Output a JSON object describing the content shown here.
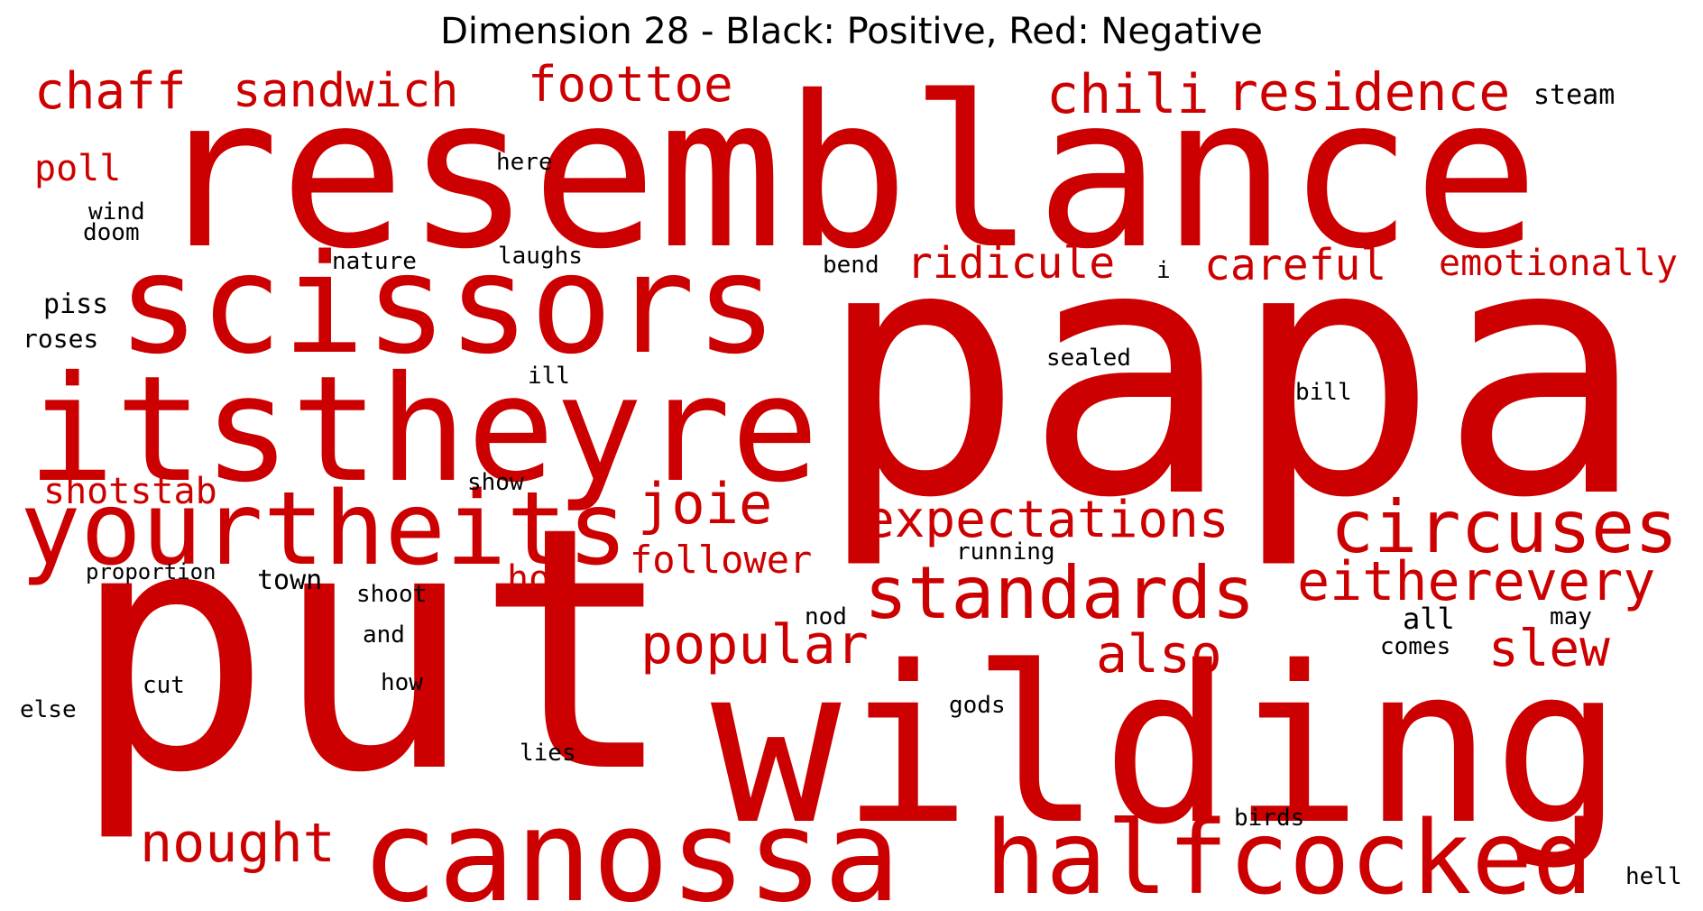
{
  "chart_data": {
    "type": "wordcloud",
    "title": "Dimension 28 - Black: Positive, Red: Negative",
    "colors": {
      "positive": "#000000",
      "negative": "#cc0000"
    },
    "words": [
      {
        "text": "papa",
        "weight": 1.0,
        "sign": "negative"
      },
      {
        "text": "put",
        "weight": 0.98,
        "sign": "negative"
      },
      {
        "text": "resemblance",
        "weight": 0.7,
        "sign": "negative"
      },
      {
        "text": "wilding",
        "weight": 0.68,
        "sign": "negative"
      },
      {
        "text": "itstheyre",
        "weight": 0.46,
        "sign": "negative"
      },
      {
        "text": "scissors",
        "weight": 0.44,
        "sign": "negative"
      },
      {
        "text": "canossa",
        "weight": 0.44,
        "sign": "negative"
      },
      {
        "text": "yourtheits",
        "weight": 0.33,
        "sign": "negative"
      },
      {
        "text": "halfcocked",
        "weight": 0.33,
        "sign": "negative"
      },
      {
        "text": "circuses",
        "weight": 0.24,
        "sign": "negative"
      },
      {
        "text": "standards",
        "weight": 0.24,
        "sign": "negative"
      },
      {
        "text": "eitherevery",
        "weight": 0.18,
        "sign": "negative"
      },
      {
        "text": "joie",
        "weight": 0.18,
        "sign": "negative"
      },
      {
        "text": "popular",
        "weight": 0.18,
        "sign": "negative"
      },
      {
        "text": "expectations",
        "weight": 0.17,
        "sign": "negative"
      },
      {
        "text": "also",
        "weight": 0.19,
        "sign": "negative"
      },
      {
        "text": "nought",
        "weight": 0.19,
        "sign": "negative"
      },
      {
        "text": "chili",
        "weight": 0.18,
        "sign": "negative"
      },
      {
        "text": "residence",
        "weight": 0.17,
        "sign": "negative"
      },
      {
        "text": "foottoe",
        "weight": 0.16,
        "sign": "negative"
      },
      {
        "text": "chaff",
        "weight": 0.16,
        "sign": "negative"
      },
      {
        "text": "sandwich",
        "weight": 0.15,
        "sign": "negative"
      },
      {
        "text": "slew",
        "weight": 0.17,
        "sign": "negative"
      },
      {
        "text": "ridicule",
        "weight": 0.14,
        "sign": "negative"
      },
      {
        "text": "careful",
        "weight": 0.14,
        "sign": "negative"
      },
      {
        "text": "follower",
        "weight": 0.12,
        "sign": "negative"
      },
      {
        "text": "emotionally",
        "weight": 0.11,
        "sign": "negative"
      },
      {
        "text": "shotstab",
        "weight": 0.11,
        "sign": "negative"
      },
      {
        "text": "poll",
        "weight": 0.11,
        "sign": "negative"
      },
      {
        "text": "hol",
        "weight": 0.11,
        "sign": "negative"
      },
      {
        "text": "steam",
        "weight": 0.07,
        "sign": "positive"
      },
      {
        "text": "here",
        "weight": 0.06,
        "sign": "positive"
      },
      {
        "text": "wind",
        "weight": 0.06,
        "sign": "positive"
      },
      {
        "text": "doom",
        "weight": 0.06,
        "sign": "positive"
      },
      {
        "text": "nature",
        "weight": 0.06,
        "sign": "positive"
      },
      {
        "text": "laughs",
        "weight": 0.06,
        "sign": "positive"
      },
      {
        "text": "bend",
        "weight": 0.06,
        "sign": "positive"
      },
      {
        "text": "i",
        "weight": 0.06,
        "sign": "positive"
      },
      {
        "text": "piss",
        "weight": 0.07,
        "sign": "positive"
      },
      {
        "text": "roses",
        "weight": 0.07,
        "sign": "positive"
      },
      {
        "text": "ill",
        "weight": 0.06,
        "sign": "positive"
      },
      {
        "text": "sealed",
        "weight": 0.06,
        "sign": "positive"
      },
      {
        "text": "bill",
        "weight": 0.06,
        "sign": "positive"
      },
      {
        "text": "show",
        "weight": 0.06,
        "sign": "positive"
      },
      {
        "text": "running",
        "weight": 0.06,
        "sign": "positive"
      },
      {
        "text": "proportion",
        "weight": 0.06,
        "sign": "positive"
      },
      {
        "text": "town",
        "weight": 0.07,
        "sign": "positive"
      },
      {
        "text": "shoot",
        "weight": 0.06,
        "sign": "positive"
      },
      {
        "text": "nod",
        "weight": 0.06,
        "sign": "positive"
      },
      {
        "text": "all",
        "weight": 0.08,
        "sign": "positive"
      },
      {
        "text": "may",
        "weight": 0.06,
        "sign": "positive"
      },
      {
        "text": "and",
        "weight": 0.06,
        "sign": "positive"
      },
      {
        "text": "comes",
        "weight": 0.06,
        "sign": "positive"
      },
      {
        "text": "cut",
        "weight": 0.06,
        "sign": "positive"
      },
      {
        "text": "how",
        "weight": 0.06,
        "sign": "positive"
      },
      {
        "text": "else",
        "weight": 0.06,
        "sign": "positive"
      },
      {
        "text": "gods",
        "weight": 0.06,
        "sign": "positive"
      },
      {
        "text": "lies",
        "weight": 0.06,
        "sign": "positive"
      },
      {
        "text": "birds",
        "weight": 0.06,
        "sign": "positive"
      },
      {
        "text": "hell",
        "weight": 0.06,
        "sign": "positive"
      }
    ]
  }
}
